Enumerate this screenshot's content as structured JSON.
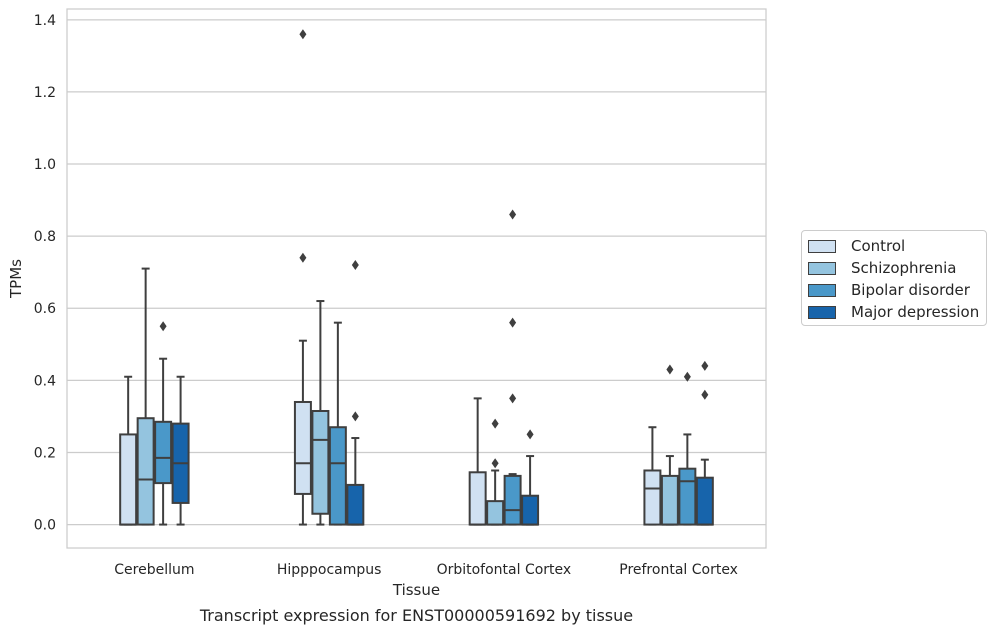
{
  "caption": "Transcript expression for ENST00000591692 by tissue",
  "legend": {
    "items": [
      {
        "label": "Control",
        "color": "#d0e1f2"
      },
      {
        "label": "Schizophrenia",
        "color": "#94c4df"
      },
      {
        "label": "Bipolar disorder",
        "color": "#4a98c9"
      },
      {
        "label": "Major depression",
        "color": "#1764ab"
      }
    ]
  },
  "chart_data": {
    "type": "boxplot",
    "xlabel": "Tissue",
    "ylabel": "TPMs",
    "ylim": [
      -0.065,
      1.43
    ],
    "yticks": [
      0.0,
      0.2,
      0.4,
      0.6,
      0.8,
      1.0,
      1.2,
      1.4
    ],
    "ytick_labels": [
      "0.0",
      "0.2",
      "0.4",
      "0.6",
      "0.8",
      "1.0",
      "1.2",
      "1.4"
    ],
    "grid": "horizontal",
    "legend_position": "outside-right",
    "categories": [
      "Cerebellum",
      "Hipppocampus",
      "Orbitofontal Cortex",
      "Prefrontal Cortex"
    ],
    "series": [
      {
        "name": "Control",
        "color": "#d0e1f2",
        "boxes": [
          {
            "whislo": 0.0,
            "q1": 0.0,
            "med": 0.0,
            "q3": 0.25,
            "whishi": 0.41,
            "fliers": []
          },
          {
            "whislo": 0.0,
            "q1": 0.085,
            "med": 0.17,
            "q3": 0.34,
            "whishi": 0.51,
            "fliers": [
              0.74,
              1.36
            ]
          },
          {
            "whislo": 0.0,
            "q1": 0.0,
            "med": 0.0,
            "q3": 0.145,
            "whishi": 0.35,
            "fliers": []
          },
          {
            "whislo": 0.0,
            "q1": 0.0,
            "med": 0.1,
            "q3": 0.15,
            "whishi": 0.27,
            "fliers": []
          }
        ]
      },
      {
        "name": "Schizophrenia",
        "color": "#94c4df",
        "boxes": [
          {
            "whislo": 0.0,
            "q1": 0.0,
            "med": 0.125,
            "q3": 0.295,
            "whishi": 0.71,
            "fliers": []
          },
          {
            "whislo": 0.0,
            "q1": 0.03,
            "med": 0.235,
            "q3": 0.315,
            "whishi": 0.62,
            "fliers": []
          },
          {
            "whislo": 0.0,
            "q1": 0.0,
            "med": 0.0,
            "q3": 0.065,
            "whishi": 0.15,
            "fliers": [
              0.17,
              0.28
            ]
          },
          {
            "whislo": 0.0,
            "q1": 0.0,
            "med": 0.0,
            "q3": 0.135,
            "whishi": 0.19,
            "fliers": [
              0.43
            ]
          }
        ]
      },
      {
        "name": "Bipolar disorder",
        "color": "#4a98c9",
        "boxes": [
          {
            "whislo": 0.0,
            "q1": 0.115,
            "med": 0.185,
            "q3": 0.285,
            "whishi": 0.46,
            "fliers": [
              0.55
            ]
          },
          {
            "whislo": 0.0,
            "q1": 0.0,
            "med": 0.17,
            "q3": 0.27,
            "whishi": 0.56,
            "fliers": []
          },
          {
            "whislo": 0.0,
            "q1": 0.0,
            "med": 0.04,
            "q3": 0.135,
            "whishi": 0.14,
            "fliers": [
              0.35,
              0.56,
              0.86
            ]
          },
          {
            "whislo": 0.0,
            "q1": 0.0,
            "med": 0.12,
            "q3": 0.155,
            "whishi": 0.25,
            "fliers": [
              0.41
            ]
          }
        ]
      },
      {
        "name": "Major depression",
        "color": "#1764ab",
        "boxes": [
          {
            "whislo": 0.0,
            "q1": 0.06,
            "med": 0.17,
            "q3": 0.28,
            "whishi": 0.41,
            "fliers": []
          },
          {
            "whislo": 0.0,
            "q1": 0.0,
            "med": 0.0,
            "q3": 0.11,
            "whishi": 0.24,
            "fliers": [
              0.3,
              0.72
            ]
          },
          {
            "whislo": 0.0,
            "q1": 0.0,
            "med": 0.0,
            "q3": 0.08,
            "whishi": 0.19,
            "fliers": [
              0.25
            ]
          },
          {
            "whislo": 0.0,
            "q1": 0.0,
            "med": 0.0,
            "q3": 0.13,
            "whishi": 0.18,
            "fliers": [
              0.36,
              0.44
            ]
          }
        ]
      }
    ]
  }
}
